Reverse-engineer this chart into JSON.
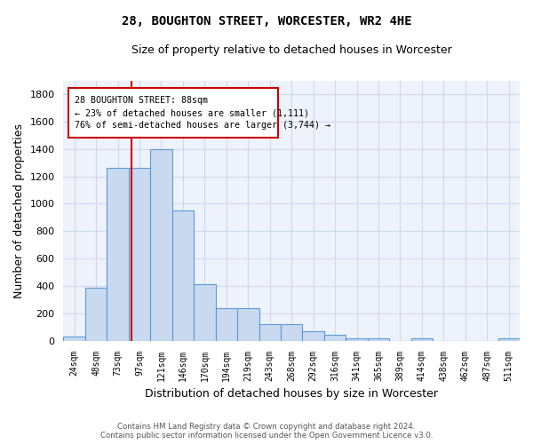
{
  "title": "28, BOUGHTON STREET, WORCESTER, WR2 4HE",
  "subtitle": "Size of property relative to detached houses in Worcester",
  "xlabel": "Distribution of detached houses by size in Worcester",
  "ylabel": "Number of detached properties",
  "categories": [
    "24sqm",
    "48sqm",
    "73sqm",
    "97sqm",
    "121sqm",
    "146sqm",
    "170sqm",
    "194sqm",
    "219sqm",
    "243sqm",
    "268sqm",
    "292sqm",
    "316sqm",
    "341sqm",
    "365sqm",
    "389sqm",
    "414sqm",
    "438sqm",
    "462sqm",
    "487sqm",
    "511sqm"
  ],
  "values": [
    30,
    390,
    1260,
    1260,
    1400,
    950,
    410,
    235,
    235,
    120,
    120,
    70,
    45,
    20,
    20,
    0,
    20,
    0,
    0,
    0,
    20
  ],
  "bar_color": "#c9d9f0",
  "bar_edge_color": "#5b9bd5",
  "ylim": [
    0,
    1900
  ],
  "yticks": [
    0,
    200,
    400,
    600,
    800,
    1000,
    1200,
    1400,
    1600,
    1800
  ],
  "property_label": "28 BOUGHTON STREET: 88sqm",
  "annotation_line1": "← 23% of detached houses are smaller (1,111)",
  "annotation_line2": "76% of semi-detached houses are larger (3,744) →",
  "vline_color": "#cc0000",
  "annotation_box_color": "#cc0000",
  "footer_line1": "Contains HM Land Registry data © Crown copyright and database right 2024.",
  "footer_line2": "Contains public sector information licensed under the Open Government Licence v3.0.",
  "bg_color": "#eef2fb",
  "grid_color": "#d0d8ee",
  "vline_x_index": 2.62
}
